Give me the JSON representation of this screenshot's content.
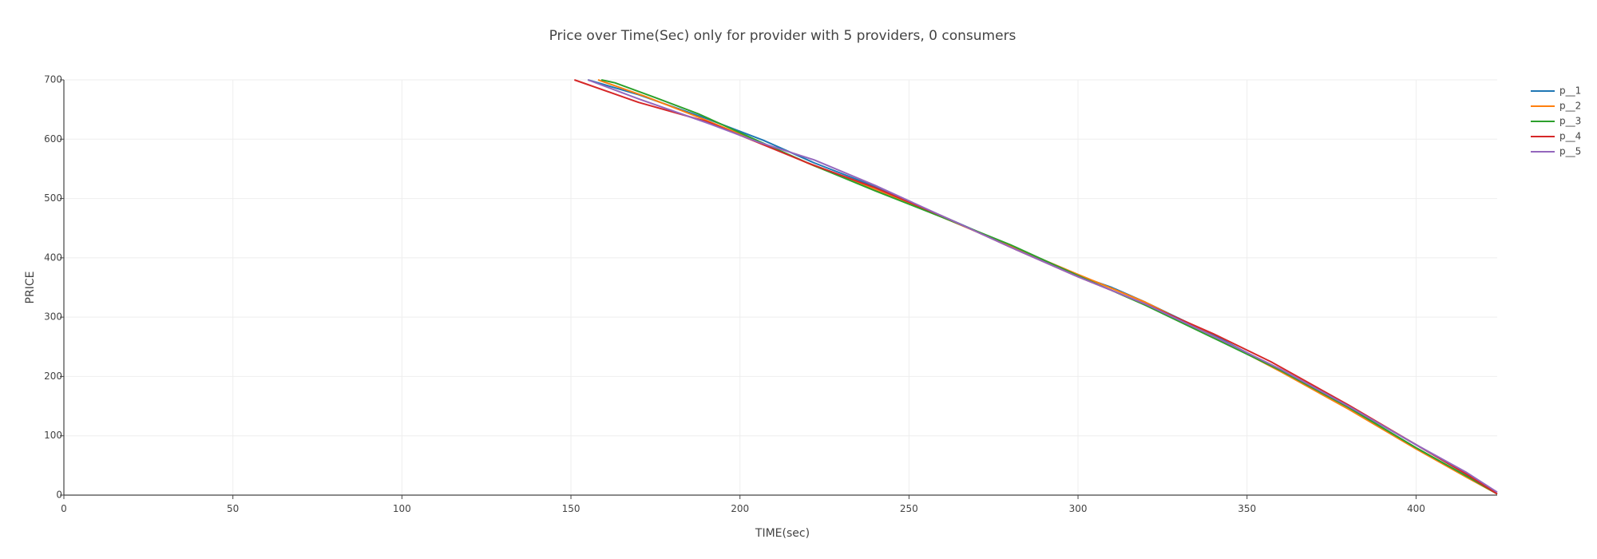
{
  "chart_data": {
    "type": "line",
    "title": "Price over Time(Sec) only for provider with 5 providers, 0 consumers",
    "xlabel": "TIME(sec)",
    "ylabel": "PRICE",
    "xlim": [
      0,
      424
    ],
    "ylim": [
      0,
      700
    ],
    "xticks": [
      0,
      50,
      100,
      150,
      200,
      250,
      300,
      350,
      400
    ],
    "yticks": [
      0,
      100,
      200,
      300,
      400,
      500,
      600,
      700
    ],
    "grid": true,
    "legend_position": "top-right",
    "colors": [
      "#1f77b4",
      "#ff7f0e",
      "#2ca02c",
      "#d62728",
      "#9467bd"
    ],
    "series": [
      {
        "name": "p__1",
        "x": [
          155,
          170,
          190,
          207,
          222,
          240,
          260,
          280,
          300,
          310,
          320,
          340,
          360,
          380,
          400,
          415,
          424
        ],
        "y": [
          700,
          675,
          635,
          598,
          560,
          520,
          470,
          420,
          370,
          350,
          325,
          270,
          210,
          150,
          85,
          35,
          2
        ]
      },
      {
        "name": "p__2",
        "x": [
          158,
          172,
          190,
          207,
          222,
          240,
          260,
          280,
          300,
          320,
          340,
          360,
          380,
          400,
          415,
          424
        ],
        "y": [
          700,
          672,
          632,
          592,
          555,
          515,
          468,
          420,
          372,
          325,
          268,
          208,
          145,
          78,
          30,
          2
        ]
      },
      {
        "name": "p__3",
        "x": [
          159,
          163,
          175,
          188,
          205,
          220,
          240,
          260,
          280,
          300,
          320,
          340,
          360,
          380,
          400,
          415,
          424
        ],
        "y": [
          700,
          695,
          670,
          642,
          598,
          560,
          513,
          468,
          422,
          370,
          320,
          265,
          210,
          148,
          80,
          32,
          2
        ]
      },
      {
        "name": "p__4",
        "x": [
          151,
          170,
          190,
          205,
          220,
          240,
          260,
          280,
          300,
          310,
          320,
          340,
          357,
          380,
          400,
          415,
          424
        ],
        "y": [
          700,
          662,
          630,
          595,
          560,
          518,
          470,
          418,
          368,
          345,
          322,
          272,
          225,
          152,
          85,
          35,
          2
        ]
      },
      {
        "name": "p__5",
        "x": [
          155,
          170,
          190,
          205,
          222,
          240,
          260,
          280,
          300,
          320,
          340,
          360,
          380,
          400,
          415,
          424
        ],
        "y": [
          700,
          668,
          628,
          596,
          565,
          522,
          470,
          418,
          368,
          322,
          268,
          212,
          150,
          85,
          38,
          5
        ]
      }
    ]
  }
}
